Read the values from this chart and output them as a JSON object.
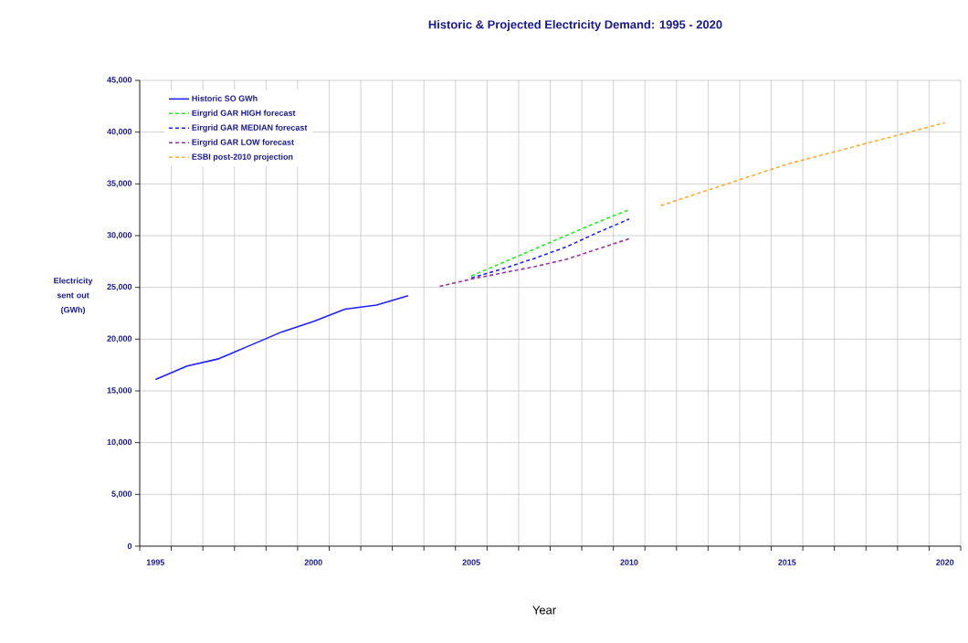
{
  "chart_data": {
    "type": "line",
    "title": "Historic & Projected Electricity Demand: 1995 - 2020",
    "xlabel": "Year",
    "ylabel": "Electricity sent out (GWh)",
    "categories": [
      "1995",
      null,
      null,
      null,
      null,
      "2000",
      null,
      null,
      null,
      null,
      "2005",
      null,
      null,
      null,
      null,
      "2010",
      null,
      null,
      null,
      null,
      "2015",
      null,
      null,
      null,
      null,
      "2020"
    ],
    "ylim": [
      0,
      45000
    ],
    "yticks": [
      0,
      {
        "value": 5000,
        "label": "5,000"
      },
      {
        "value": 10000,
        "label": "10,000"
      },
      {
        "value": 15000,
        "label": "15,000"
      },
      {
        "value": 20000,
        "label": "20,000"
      },
      {
        "value": 25000,
        "label": "25,000"
      },
      {
        "value": 30000,
        "label": "30,000"
      },
      {
        "value": 35000,
        "label": "35,000"
      },
      {
        "value": 40000,
        "label": "40,000"
      },
      {
        "value": 45000,
        "label": "45,000"
      }
    ],
    "grid": true,
    "legend": "top left",
    "series": [
      {
        "name": "Historic SO GWh",
        "color": "#1f1fff",
        "line_style": "solid",
        "values": [
          16100,
          17400,
          18100,
          19400,
          20700,
          21700,
          22900,
          23300,
          24200,
          null,
          null,
          null,
          null,
          null,
          null,
          null,
          null,
          null,
          null,
          null,
          null,
          null,
          null,
          null,
          null,
          null
        ]
      },
      {
        "name": "Eirgrid GAR HIGH forecast",
        "color": "#22ee22",
        "line_style": "dashed",
        "values": [
          null,
          null,
          null,
          null,
          null,
          null,
          null,
          null,
          null,
          null,
          26100,
          27400,
          28700,
          30000,
          31300,
          32500,
          null,
          null,
          null,
          null,
          null,
          null,
          null,
          null,
          null,
          null
        ]
      },
      {
        "name": "Eirgrid GAR MEDIAN forecast",
        "color": "#1f1fff",
        "line_style": "dashed",
        "values": [
          null,
          null,
          null,
          null,
          null,
          null,
          null,
          null,
          null,
          null,
          25900,
          26800,
          27800,
          28900,
          30300,
          31600,
          null,
          null,
          null,
          null,
          null,
          null,
          null,
          null,
          null,
          null
        ]
      },
      {
        "name": "Eirgrid GAR LOW forecast",
        "color": "#993399",
        "line_style": "dashed",
        "values": [
          null,
          null,
          null,
          null,
          null,
          null,
          null,
          null,
          null,
          25100,
          25800,
          26400,
          27000,
          27700,
          28700,
          29700,
          null,
          null,
          null,
          null,
          null,
          null,
          null,
          null,
          null,
          null
        ]
      },
      {
        "name": "ESBI post-2010 projection",
        "color": "#ffaa33",
        "line_style": "dashed",
        "values": [
          null,
          null,
          null,
          null,
          null,
          null,
          null,
          null,
          null,
          null,
          null,
          null,
          null,
          null,
          null,
          null,
          32900,
          33900,
          34900,
          35900,
          36900,
          37700,
          38500,
          39300,
          40100,
          40900
        ]
      }
    ]
  }
}
